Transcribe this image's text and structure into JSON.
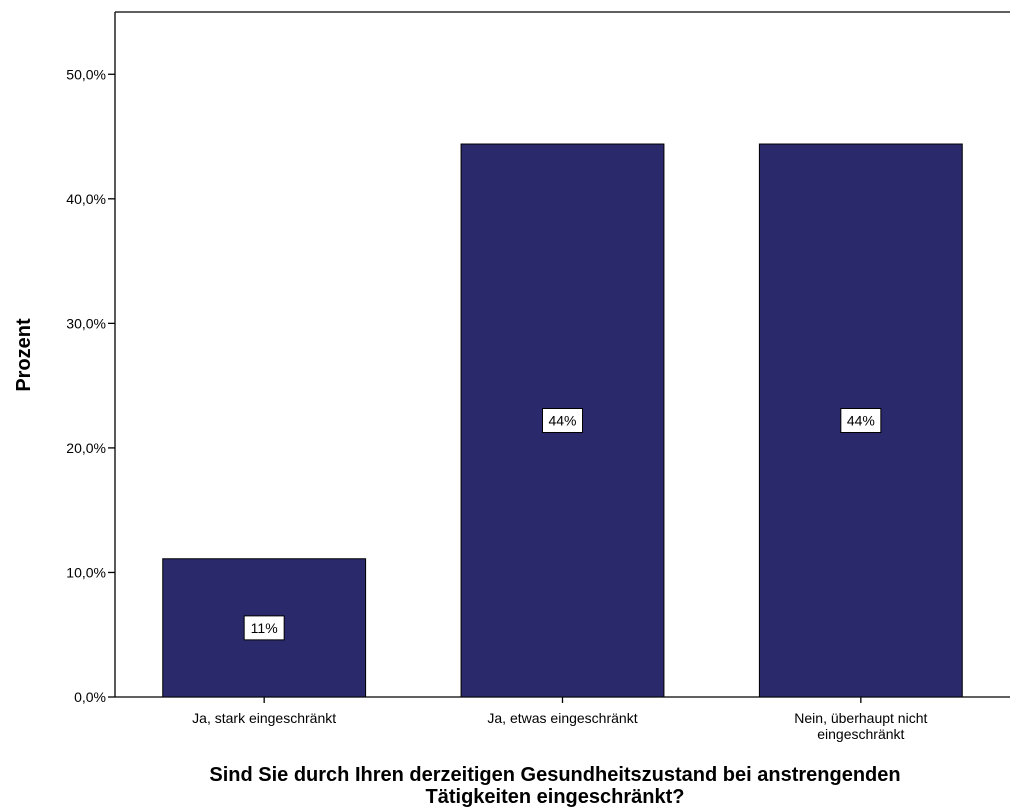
{
  "chart_data": {
    "type": "bar",
    "categories": [
      "Ja, stark eingeschränkt",
      "Ja, etwas eingeschränkt",
      "Nein, überhaupt nicht eingeschränkt"
    ],
    "values": [
      11.1,
      44.4,
      44.4
    ],
    "data_labels": [
      "11%",
      "44%",
      "44%"
    ],
    "ylabel": "Prozent",
    "xlabel": "Sind Sie durch Ihren derzeitigen Gesundheitszustand bei anstrengenden Tätigkeiten eingeschränkt?",
    "yticks": [
      0,
      10,
      20,
      30,
      40,
      50
    ],
    "ytick_labels": [
      "0,0%",
      "10,0%",
      "20,0%",
      "30,0%",
      "40,0%",
      "50,0%"
    ],
    "ylim": [
      0,
      55
    ],
    "bar_color": "#29296b",
    "grid": false
  }
}
